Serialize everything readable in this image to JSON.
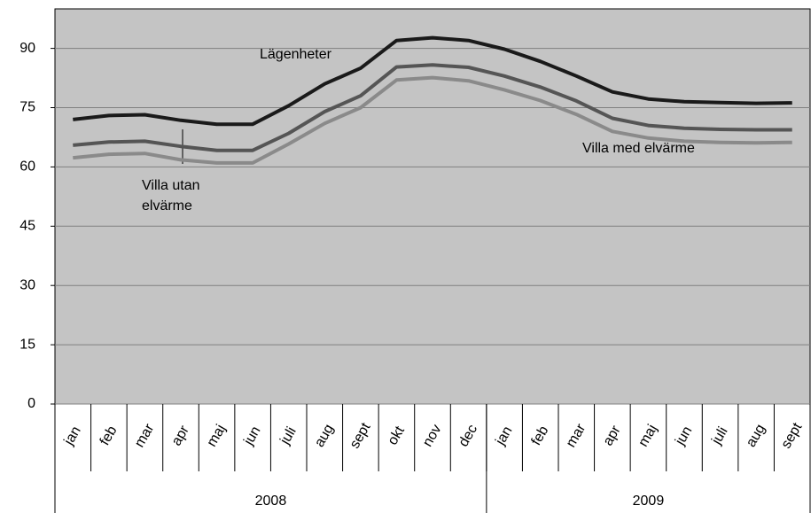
{
  "chart_data": {
    "type": "line",
    "categories": [
      "jan",
      "feb",
      "mar",
      "apr",
      "maj",
      "jun",
      "juli",
      "aug",
      "sept",
      "okt",
      "nov",
      "dec",
      "jan",
      "feb",
      "mar",
      "apr",
      "maj",
      "jun",
      "juli",
      "aug",
      "sept"
    ],
    "category_groups": [
      {
        "label": "2008",
        "size": 12
      },
      {
        "label": "2009",
        "size": 9
      }
    ],
    "series": [
      {
        "name": "Lägenheter",
        "color": "#1a1a1a",
        "values": [
          72,
          73,
          73.2,
          71.8,
          70.8,
          70.8,
          75.5,
          81,
          85,
          92,
          92.7,
          92,
          89.8,
          86.7,
          83,
          79,
          77.2,
          76.5,
          76.3,
          76.1,
          76.2
        ]
      },
      {
        "name": "Villa med elvärme",
        "color": "#555555",
        "values": [
          65.5,
          66.3,
          66.5,
          65.2,
          64.2,
          64.2,
          68.5,
          74,
          78,
          85.3,
          85.8,
          85.2,
          83,
          80.2,
          76.7,
          72.3,
          70.5,
          69.8,
          69.5,
          69.4,
          69.4
        ]
      },
      {
        "name": "Villa utan elvärme",
        "color": "#8a8a8a",
        "values": [
          62.3,
          63.2,
          63.4,
          61.8,
          61,
          61,
          65.8,
          71,
          75,
          82,
          82.6,
          81.8,
          79.5,
          76.8,
          73.3,
          69,
          67.3,
          66.5,
          66.2,
          66.1,
          66.2
        ]
      }
    ],
    "ylim": [
      0,
      100
    ],
    "yticks": [
      0,
      15,
      30,
      45,
      60,
      75,
      90
    ],
    "grid": true,
    "background": "#c4c4c4"
  }
}
